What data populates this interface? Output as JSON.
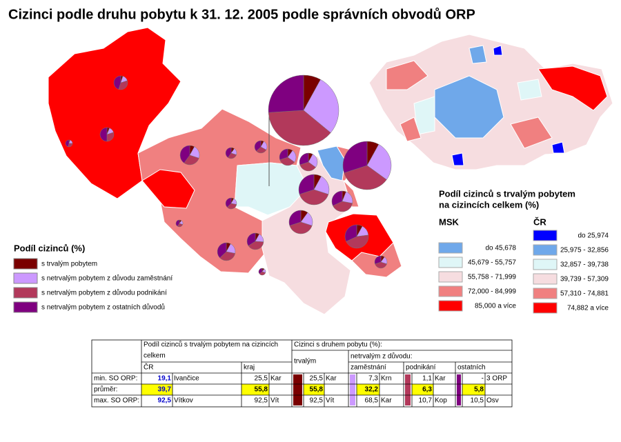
{
  "title": "Cizinci podle druhu pobytu k 31. 12. 2005 podle správních obvodů ORP",
  "pie_legend": {
    "title": "Podíl cizinců (%)",
    "items": [
      {
        "label": "s trvalým pobytem",
        "color": "#7a0000"
      },
      {
        "label": "s netrvalým pobytem z důvodu zaměstnání",
        "color": "#cc99ff"
      },
      {
        "label": "s netrvalým pobytem z důvodu podnikání",
        "color": "#b2395b"
      },
      {
        "label": "s netrvalým pobytem z ostatních důvodů",
        "color": "#7f0080"
      }
    ]
  },
  "choropleth_legend": {
    "title": [
      "Podíl cizinců s trvalým pobytem",
      "na cizincích celkem (%)"
    ],
    "msk": {
      "heading": "MSK",
      "classes": [
        {
          "label": "do 45,678",
          "color": "#6fa8ea"
        },
        {
          "label": "45,679 - 55,757",
          "color": "#dff6f7"
        },
        {
          "label": "55,758 - 71,999",
          "color": "#f6dde0"
        },
        {
          "label": "72,000 - 84,999",
          "color": "#f08080"
        },
        {
          "label": "85,000 a více",
          "color": "#ff0000"
        }
      ]
    },
    "cr": {
      "heading": "ČR",
      "classes": [
        {
          "label": "do 25,974",
          "color": "#0000ff"
        },
        {
          "label": "25,975 - 32,856",
          "color": "#6fa8ea"
        },
        {
          "label": "32,857 - 39,738",
          "color": "#dff6f7"
        },
        {
          "label": "39,739 - 57,309",
          "color": "#f6dde0"
        },
        {
          "label": "57,310 - 74,881",
          "color": "#f08080"
        },
        {
          "label": "74,882 a více",
          "color": "#ff0000"
        }
      ]
    }
  },
  "pies": [
    {
      "shares": [
        5,
        15,
        35,
        45
      ]
    },
    {
      "shares": [
        6,
        14,
        30,
        50
      ]
    },
    {
      "shares": [
        5,
        20,
        30,
        45
      ]
    },
    {
      "shares": [
        8,
        22,
        30,
        40
      ]
    },
    {
      "shares": [
        10,
        20,
        30,
        40
      ]
    },
    {
      "shares": [
        8,
        25,
        30,
        37
      ]
    },
    {
      "shares": [
        10,
        25,
        35,
        30
      ]
    },
    {
      "shares": [
        8,
        27,
        35,
        30
      ]
    },
    {
      "shares": [
        8,
        28,
        38,
        26
      ]
    },
    {
      "shares": [
        8,
        27,
        35,
        30
      ]
    },
    {
      "shares": [
        8,
        22,
        40,
        30
      ]
    },
    {
      "shares": [
        6,
        22,
        40,
        32
      ]
    },
    {
      "shares": [
        10,
        20,
        40,
        30
      ]
    },
    {
      "shares": [
        8,
        20,
        35,
        37
      ]
    },
    {
      "shares": [
        10,
        20,
        30,
        40
      ]
    },
    {
      "shares": [
        8,
        20,
        35,
        37
      ]
    },
    {
      "shares": [
        8,
        18,
        40,
        34
      ]
    },
    {
      "shares": [
        8,
        15,
        45,
        32
      ]
    },
    {
      "shares": [
        10,
        20,
        40,
        30
      ]
    },
    {
      "shares": [
        10,
        20,
        35,
        35
      ]
    }
  ],
  "table": {
    "header_share": [
      "Podíl cizinců s trvalým pobytem na cizincích",
      "celkem"
    ],
    "header_type": "Cizinci s druhem pobytu (%):",
    "header_trv": "trvalým",
    "header_netrv": "netrvalým z důvodu:",
    "col_cr": "ČR",
    "col_kraj": "kraj",
    "col_zam": "zaměstnání",
    "col_podn": "podnikání",
    "col_ost": "ostatních",
    "rows": [
      {
        "label": "min. SO ORP:",
        "cells": [
          "19,1",
          "Ivančice",
          "25,5",
          "Kar",
          "25,5",
          "Kar",
          "7,3",
          "Krn",
          "1,1",
          "Kar",
          "-",
          "3 ORP"
        ]
      },
      {
        "label": "průměr:",
        "cells": [
          "39,7",
          null,
          "55,8",
          null,
          "55,8",
          null,
          "32,2",
          null,
          "6,3",
          null,
          "5,8",
          null
        ]
      },
      {
        "label": "max. SO ORP:",
        "cells": [
          "92,5",
          "Vítkov",
          "92,5",
          "Vít",
          "92,5",
          "Vít",
          "68,5",
          "Kar",
          "10,7",
          "Kop",
          "10,5",
          "Osv"
        ]
      }
    ]
  }
}
